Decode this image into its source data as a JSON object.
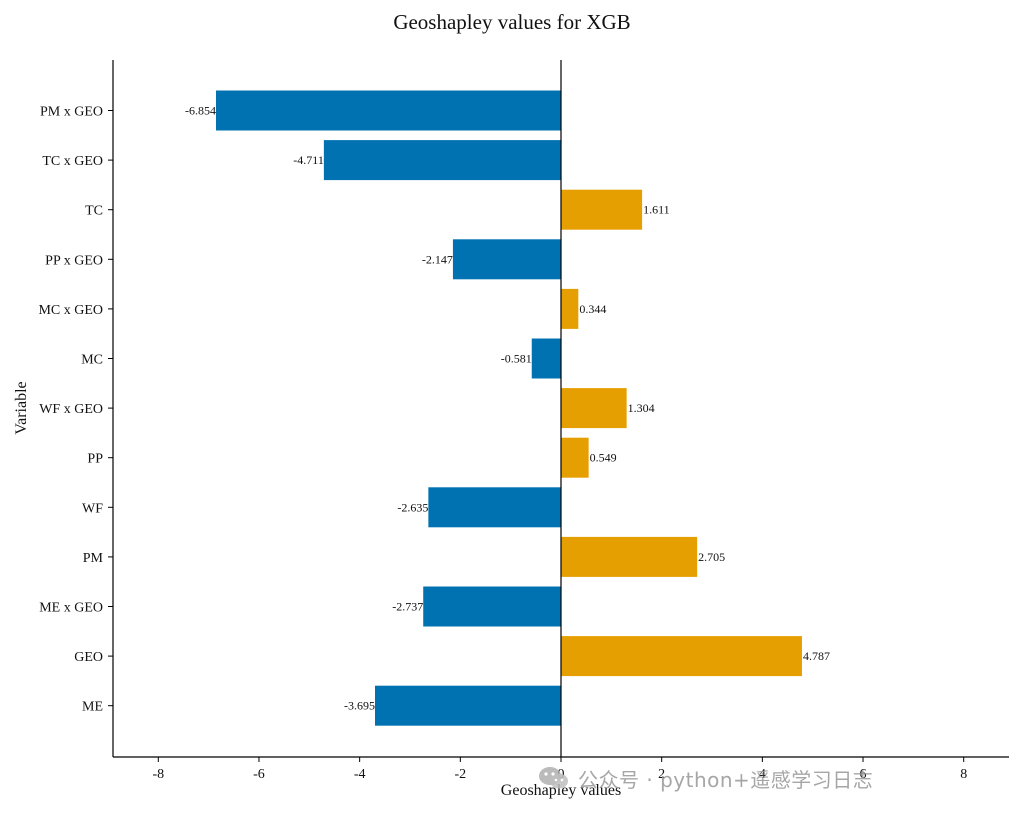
{
  "chart_data": {
    "type": "bar",
    "orientation": "horizontal",
    "title": "Geoshapley values for XGB",
    "xlabel": "Geoshapley values",
    "ylabel": "Variable",
    "categories": [
      "PM x GEO",
      "TC x GEO",
      "TC",
      "PP x GEO",
      "MC x GEO",
      "MC",
      "WF x GEO",
      "PP",
      "WF",
      "PM",
      "ME x GEO",
      "GEO",
      "ME"
    ],
    "values": [
      -6.854,
      -4.711,
      1.611,
      -2.147,
      0.344,
      -0.581,
      1.304,
      0.549,
      -2.635,
      2.705,
      -2.737,
      4.787,
      -3.695
    ],
    "value_labels": [
      "-6.854",
      "-4.711",
      "1.611",
      "-2.147",
      "0.344",
      "-0.581",
      "1.304",
      "0.549",
      "-2.635",
      "2.705",
      "-2.737",
      "4.787",
      "-3.695"
    ],
    "xlim": [
      -8.9,
      8.9
    ],
    "xticks": [
      -8,
      -6,
      -4,
      -2,
      0,
      2,
      4,
      6,
      8
    ],
    "xtick_labels": [
      "-8",
      "-6",
      "-4",
      "-2",
      "0",
      "2",
      "4",
      "6",
      "8"
    ],
    "colors": {
      "negative": "#0072b2",
      "positive": "#e69f00",
      "axis": "#000000"
    },
    "grid": false,
    "legend": "none"
  },
  "watermark": {
    "icon": "wechat-icon",
    "text": "公众号 · python+遥感学习日志"
  }
}
